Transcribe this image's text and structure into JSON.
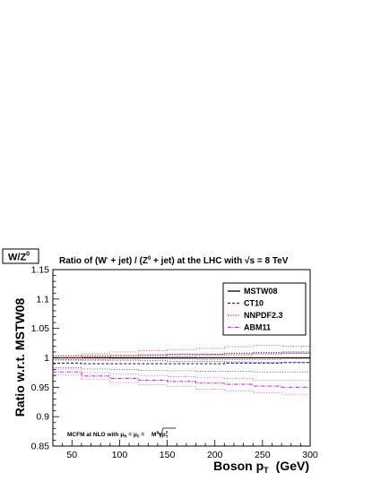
{
  "chart_data": {
    "type": "line",
    "corner_label": "W/Z",
    "corner_label_sup": "0",
    "title": {
      "pre": "Ratio of (W",
      "sup1": "-",
      "mid": " + jet) / (Z",
      "sup2": "0",
      "post": " + jet) at the LHC with ",
      "sqrt_symbol": "√",
      "s_text": "s = 8 TeV"
    },
    "xlabel": "Boson p",
    "xlabel_sub": "T",
    "xlabel_unit": "(GeV)",
    "ylabel": "Ratio w.r.t. MSTW08",
    "xlim": [
      30,
      300
    ],
    "ylim": [
      0.85,
      1.15
    ],
    "x_ticks": [
      50,
      100,
      150,
      200,
      250,
      300
    ],
    "y_ticks": [
      0.85,
      0.9,
      0.95,
      1.0,
      1.05,
      1.1,
      1.15
    ],
    "y_tick_labels": [
      "0.85",
      "0.9",
      "0.95",
      "1",
      "1.05",
      "1.1",
      "1.15"
    ],
    "bin_edges": [
      30,
      60,
      90,
      120,
      150,
      180,
      210,
      240,
      270,
      300
    ],
    "series": [
      {
        "name": "MSTW08",
        "color": "#000000",
        "dash": "",
        "central": [
          1.0,
          1.0,
          1.0,
          1.0,
          1.0,
          1.0,
          1.0,
          1.0,
          1.0
        ],
        "upper": [
          1.003,
          1.004,
          1.004,
          1.005,
          1.006,
          1.006,
          1.007,
          1.008,
          1.008
        ],
        "lower": [
          0.997,
          0.996,
          0.996,
          0.995,
          0.994,
          0.994,
          0.993,
          0.992,
          0.992
        ]
      },
      {
        "name": "CT10",
        "color": "#1a1ad9",
        "dash": "3,2",
        "central": [
          0.991,
          0.99,
          0.99,
          0.99,
          0.99,
          0.99,
          0.991,
          0.991,
          0.992
        ],
        "upper": [
          1.0,
          1.0,
          1.001,
          1.002,
          1.003,
          1.004,
          1.005,
          1.006,
          1.008
        ],
        "lower": [
          0.983,
          0.981,
          0.98,
          0.979,
          0.978,
          0.977,
          0.977,
          0.976,
          0.976
        ]
      },
      {
        "name": "NNPDF2.3",
        "color": "#e01b1b",
        "dash": "1.2,1.6",
        "central": [
          1.0,
          1.002,
          1.004,
          1.005,
          1.006,
          1.006,
          1.008,
          1.009,
          1.01
        ],
        "upper": [
          1.004,
          1.007,
          1.01,
          1.012,
          1.014,
          1.016,
          1.019,
          1.021,
          1.02
        ],
        "lower": [
          0.996,
          0.997,
          0.998,
          0.998,
          0.998,
          0.997,
          0.997,
          0.997,
          0.999
        ]
      },
      {
        "name": "ABM11",
        "color": "#e020e0",
        "dash": "4,1.5,1,1.5",
        "central": [
          0.976,
          0.969,
          0.965,
          0.962,
          0.96,
          0.957,
          0.955,
          0.952,
          0.95
        ],
        "upper": [
          0.981,
          0.975,
          0.972,
          0.97,
          0.968,
          0.966,
          0.965,
          0.962,
          0.962
        ],
        "lower": [
          0.971,
          0.963,
          0.958,
          0.954,
          0.951,
          0.947,
          0.944,
          0.941,
          0.938
        ]
      }
    ],
    "legend_position": "top-right",
    "annotation": {
      "pre": "MCFM at NLO with ",
      "mu": "μ",
      "sub_r": "R",
      "eq": " = ",
      "sub_f": "F",
      "eq2": " = ",
      "radicand": "M",
      "radicand_sup": "2",
      "plus": "+p",
      "plus_sup": "2",
      "plus_sub": "T"
    }
  }
}
